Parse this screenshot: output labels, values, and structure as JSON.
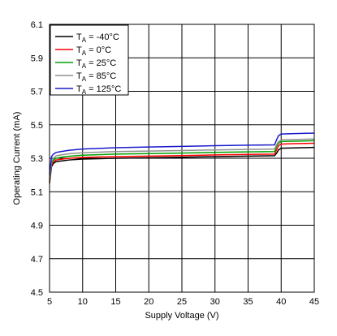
{
  "chart_data": {
    "type": "line",
    "xlabel": "Supply Voltage (V)",
    "ylabel": "Operating Current (mA)",
    "xlim": [
      5,
      45
    ],
    "ylim": [
      4.5,
      6.1
    ],
    "xticks": [
      5,
      10,
      15,
      20,
      25,
      30,
      35,
      40,
      45
    ],
    "yticks": [
      4.5,
      4.7,
      4.9,
      5.1,
      5.3,
      5.5,
      5.7,
      5.9,
      6.1
    ],
    "ytick_labels": [
      "4.5",
      "4.7",
      "4.9",
      "5.1",
      "5.3",
      "5.5",
      "5.7",
      "5.9",
      "6.1"
    ],
    "grid": true,
    "legend_position": "top-left",
    "series": [
      {
        "legend_prefix": "T",
        "legend_sub": "A",
        "legend_suffix": " = -40°C",
        "color": "#000000",
        "x": [
          5,
          5.3,
          5.6,
          6,
          7,
          8,
          10,
          15,
          20,
          25,
          30,
          35,
          39,
          39.3,
          39.6,
          40,
          42,
          45
        ],
        "y": [
          5.15,
          5.25,
          5.27,
          5.28,
          5.285,
          5.29,
          5.295,
          5.3,
          5.303,
          5.306,
          5.31,
          5.313,
          5.315,
          5.33,
          5.35,
          5.36,
          5.362,
          5.365
        ]
      },
      {
        "legend_prefix": "T",
        "legend_sub": "A",
        "legend_suffix": " = 0°C",
        "color": "#ff0000",
        "x": [
          5,
          5.3,
          5.6,
          6,
          7,
          8,
          10,
          15,
          20,
          25,
          30,
          35,
          39,
          39.3,
          39.6,
          40,
          42,
          45
        ],
        "y": [
          5.16,
          5.26,
          5.28,
          5.29,
          5.295,
          5.3,
          5.305,
          5.31,
          5.313,
          5.316,
          5.32,
          5.323,
          5.325,
          5.35,
          5.375,
          5.385,
          5.387,
          5.39
        ]
      },
      {
        "legend_prefix": "T",
        "legend_sub": "A",
        "legend_suffix": " = 25°C",
        "color": "#00a000",
        "x": [
          5,
          5.3,
          5.6,
          6,
          7,
          8,
          10,
          15,
          20,
          25,
          30,
          35,
          39,
          39.3,
          39.6,
          40,
          42,
          45
        ],
        "y": [
          5.17,
          5.27,
          5.29,
          5.3,
          5.308,
          5.312,
          5.318,
          5.325,
          5.328,
          5.331,
          5.335,
          5.338,
          5.34,
          5.37,
          5.39,
          5.4,
          5.402,
          5.405
        ]
      },
      {
        "legend_prefix": "T",
        "legend_sub": "A",
        "legend_suffix": " = 85°C",
        "color": "#909090",
        "x": [
          5,
          5.3,
          5.6,
          6,
          7,
          8,
          10,
          15,
          20,
          25,
          30,
          35,
          39,
          39.3,
          39.6,
          40,
          42,
          45
        ],
        "y": [
          5.18,
          5.28,
          5.3,
          5.315,
          5.322,
          5.327,
          5.333,
          5.34,
          5.343,
          5.346,
          5.35,
          5.353,
          5.355,
          5.38,
          5.4,
          5.41,
          5.412,
          5.415
        ]
      },
      {
        "legend_prefix": "T",
        "legend_sub": "A",
        "legend_suffix": " = 125°C",
        "color": "#1a1acc",
        "x": [
          5,
          5.3,
          5.6,
          6,
          7,
          8,
          10,
          15,
          20,
          25,
          30,
          35,
          39,
          39.3,
          39.6,
          40,
          42,
          45
        ],
        "y": [
          5.2,
          5.31,
          5.325,
          5.335,
          5.342,
          5.348,
          5.355,
          5.363,
          5.367,
          5.371,
          5.375,
          5.378,
          5.38,
          5.41,
          5.435,
          5.445,
          5.447,
          5.45
        ]
      }
    ]
  }
}
